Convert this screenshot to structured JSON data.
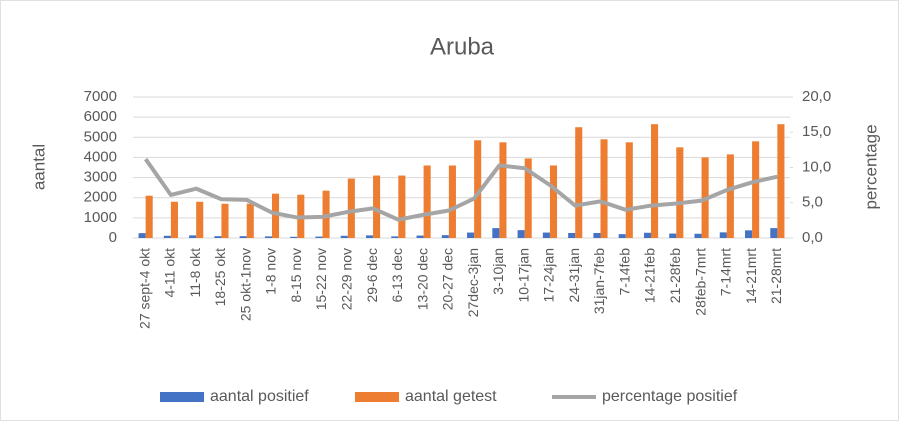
{
  "chart_data": {
    "type": "bar",
    "title": "Aruba",
    "ylabel": "aantal",
    "y2label": "percentage",
    "categories": [
      "27 sept-4 okt",
      "4-11 okt",
      "11-8 okt",
      "18-25 okt",
      "25 okt-1nov",
      "1-8 nov",
      "8-15 nov",
      "15-22 nov",
      "22-29 nov",
      "29-6 dec",
      "6-13 dec",
      "13-20 dec",
      "20-27 dec",
      "27dec-3jan",
      "3-10jan",
      "10-17jan",
      "17-24jan",
      "24-31jan",
      "31jan-7feb",
      "7-14feb",
      "14-21feb",
      "21-28feb",
      "28feb-7mrt",
      "7-14mrt",
      "14-21mrt",
      "21-28mrt"
    ],
    "series": [
      {
        "name": "aantal positief",
        "color": "#4472c4",
        "type": "bar",
        "values": [
          240,
          110,
          130,
          90,
          90,
          80,
          60,
          70,
          110,
          130,
          80,
          120,
          140,
          270,
          490,
          390,
          270,
          250,
          250,
          190,
          260,
          220,
          210,
          280,
          380,
          490
        ]
      },
      {
        "name": "aantal getest",
        "color": "#ed7d31",
        "type": "bar",
        "values": [
          2100,
          1800,
          1800,
          1700,
          1700,
          2200,
          2150,
          2350,
          2950,
          3100,
          3100,
          3600,
          3600,
          4850,
          4750,
          3950,
          3600,
          5500,
          4900,
          4750,
          5650,
          4500,
          4000,
          4150,
          4800,
          5650
        ]
      },
      {
        "name": "percentage positief",
        "color": "#a5a5a5",
        "type": "line",
        "axis": "y2",
        "values": [
          11.2,
          6.1,
          7.0,
          5.5,
          5.4,
          3.6,
          2.9,
          3.0,
          3.7,
          4.2,
          2.6,
          3.3,
          3.9,
          5.6,
          10.3,
          9.9,
          7.5,
          4.6,
          5.2,
          4.0,
          4.6,
          4.9,
          5.3,
          6.8,
          7.9,
          8.7
        ]
      }
    ],
    "ylim": [
      0,
      7000
    ],
    "yticks": [
      0,
      1000,
      2000,
      3000,
      4000,
      5000,
      6000,
      7000
    ],
    "y2lim": [
      0,
      20
    ],
    "y2ticks": [
      {
        "value": 0,
        "label": "0,0"
      },
      {
        "value": 5,
        "label": "5,0"
      },
      {
        "value": 10,
        "label": "10,0"
      },
      {
        "value": 15,
        "label": "15,0"
      },
      {
        "value": 20,
        "label": "20,0"
      }
    ],
    "grid": true,
    "legend": "bottom"
  }
}
